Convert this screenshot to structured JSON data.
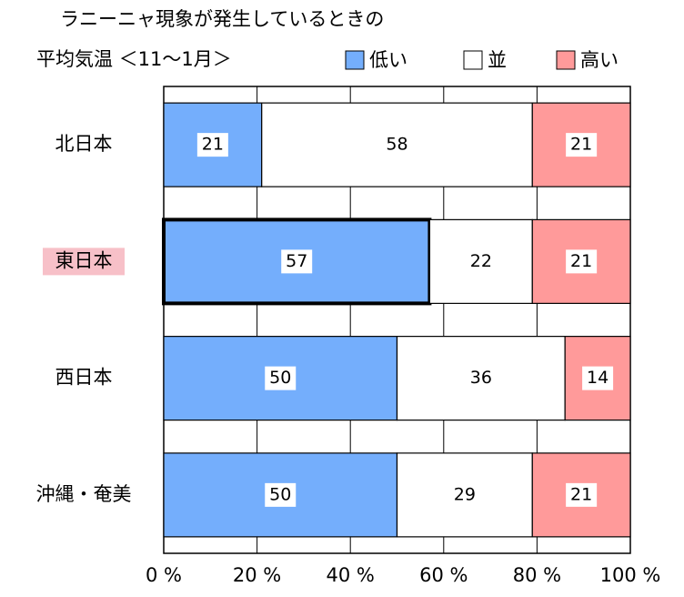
{
  "chart_data": {
    "type": "stacked_barh",
    "title": "ラニーニャ現象が発生しているときの",
    "subtitle": "平均気温 ＜11〜1月＞",
    "categories": [
      "北日本",
      "東日本",
      "西日本",
      "沖縄・奄美"
    ],
    "series": [
      {
        "name": "低い",
        "color": "#74aefc",
        "values": [
          21,
          57,
          50,
          50
        ]
      },
      {
        "name": "並",
        "color": "#ffffff",
        "values": [
          58,
          22,
          36,
          29
        ]
      },
      {
        "name": "高い",
        "color": "#ff9a9a",
        "values": [
          21,
          21,
          14,
          21
        ]
      }
    ],
    "xlim": [
      0,
      100
    ],
    "xticks": [
      {
        "value": 0,
        "label": "0 %"
      },
      {
        "value": 20,
        "label": "20 %"
      },
      {
        "value": 40,
        "label": "40 %"
      },
      {
        "value": 60,
        "label": "60 %"
      },
      {
        "value": 80,
        "label": "80 %"
      },
      {
        "value": 100,
        "label": "100 %"
      }
    ],
    "highlight": 1,
    "highlight_color": "#f7c0c8",
    "grid": true
  }
}
